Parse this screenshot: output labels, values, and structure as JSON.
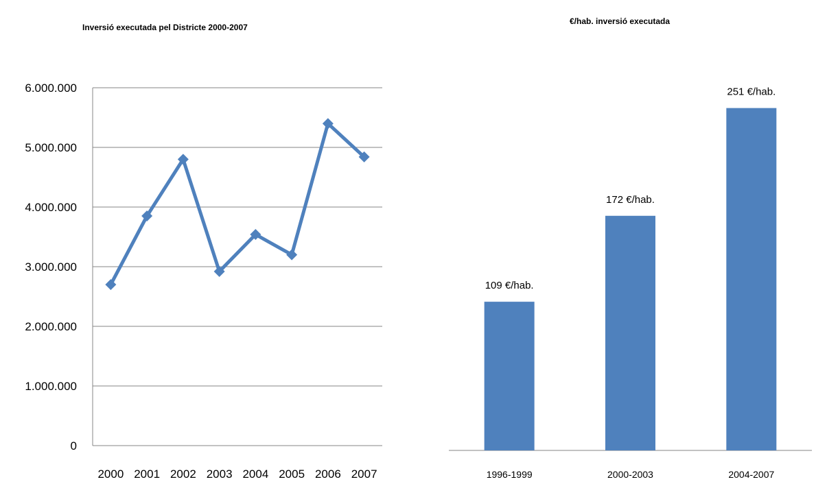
{
  "charts": {
    "left_title": "Inversió executada pel Districte 2000-2007",
    "right_title": "€/hab. inversió executada"
  },
  "chart_data": [
    {
      "type": "line",
      "title": "Inversió executada pel Districte 2000-2007",
      "x": [
        "2000",
        "2001",
        "2002",
        "2003",
        "2004",
        "2005",
        "2006",
        "2007"
      ],
      "series": [
        {
          "values": [
            2700000,
            3850000,
            4800000,
            2920000,
            3540000,
            3200000,
            5400000,
            4840000
          ]
        }
      ],
      "ylim": [
        0,
        6000000
      ],
      "y_ticks": [
        0,
        1000000,
        2000000,
        3000000,
        4000000,
        5000000,
        6000000
      ],
      "y_tick_labels": [
        "0",
        "1.000.000",
        "2.000.000",
        "3.000.000",
        "4.000.000",
        "5.000.000",
        "6.000.000"
      ],
      "grid": true,
      "color": "#4F81BD",
      "marker": "diamond"
    },
    {
      "type": "bar",
      "title": "€/hab. inversió executada",
      "categories": [
        "1996-1999",
        "2000-2003",
        "2004-2007"
      ],
      "values": [
        109,
        172,
        251
      ],
      "data_labels": [
        "109 €/hab.",
        "172 €/hab.",
        "251 €/hab."
      ],
      "ylim": [
        0,
        290
      ],
      "grid": false,
      "color": "#4F81BD"
    }
  ]
}
